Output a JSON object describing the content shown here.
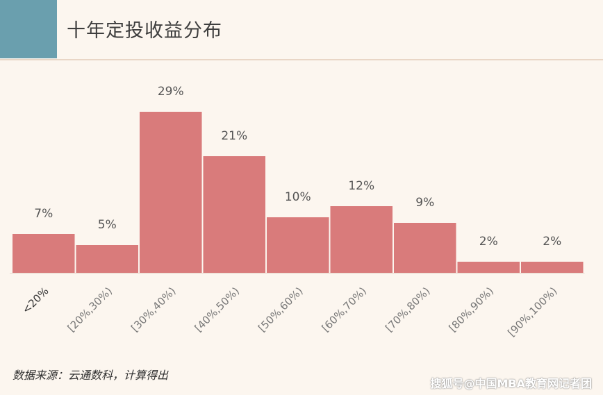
{
  "title": "十年定投收益分布",
  "source_note": "数据来源：云通数科，计算得出",
  "watermark": "搜狐号@中国MBA教育网记者团",
  "colors": {
    "bar": "#d97b7b",
    "accent": "#6a9fae",
    "background": "#fcf6ef"
  },
  "chart_data": {
    "type": "bar",
    "title": "十年定投收益分布",
    "xlabel": "",
    "ylabel": "",
    "categories": [
      "<20%",
      "[20%,30%)",
      "[30%,40%)",
      "[40%,50%)",
      "[50%,60%)",
      "[60%,70%)",
      "[70%,80%)",
      "[80%,90%)",
      "[90%,100%)"
    ],
    "values": [
      7,
      5,
      29,
      21,
      10,
      12,
      9,
      2,
      2
    ],
    "data_labels": [
      "7%",
      "5%",
      "29%",
      "21%",
      "10%",
      "12%",
      "9%",
      "2%",
      "2%"
    ],
    "ylim": [
      0,
      29
    ],
    "grid": false,
    "legend": "none"
  }
}
